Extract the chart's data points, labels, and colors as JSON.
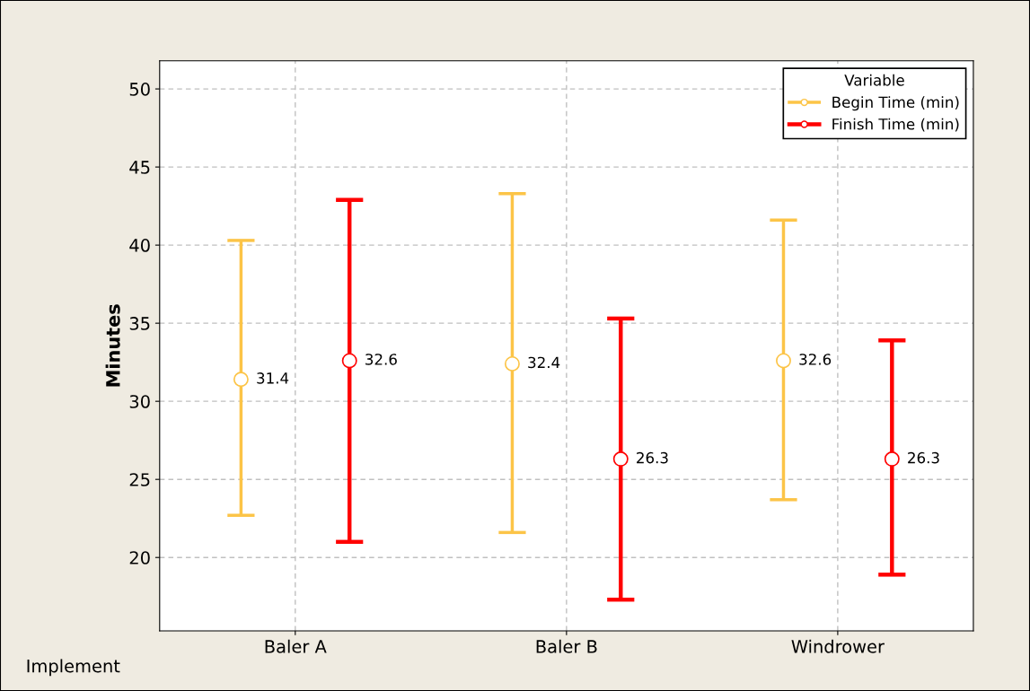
{
  "chart_data": {
    "type": "scatter",
    "ylabel": "Minutes",
    "xlabel": "Implement",
    "categories": [
      "Baler A",
      "Baler B",
      "Windrower"
    ],
    "series": [
      {
        "name": "Begin Time (min)",
        "color": "#fcc447",
        "values": [
          31.4,
          32.4,
          32.6
        ],
        "errors": [
          [
            22.7,
            40.3
          ],
          [
            21.6,
            43.3
          ],
          [
            23.7,
            41.6
          ]
        ],
        "value_labels": [
          "31.4",
          "32.4",
          "32.6"
        ]
      },
      {
        "name": "Finish Time (min)",
        "color": "#ff0000",
        "values": [
          32.6,
          26.3,
          26.3
        ],
        "errors": [
          [
            21.0,
            42.9
          ],
          [
            17.3,
            35.3
          ],
          [
            18.9,
            33.9
          ]
        ],
        "value_labels": [
          "32.6",
          "26.3",
          "26.3"
        ]
      }
    ],
    "ylim": [
      15.3,
      51.8
    ],
    "yticks": [
      20,
      25,
      30,
      35,
      40,
      45,
      50
    ],
    "grid": true,
    "legend": "top right",
    "legend_title": "Variable",
    "marker": "circle"
  }
}
